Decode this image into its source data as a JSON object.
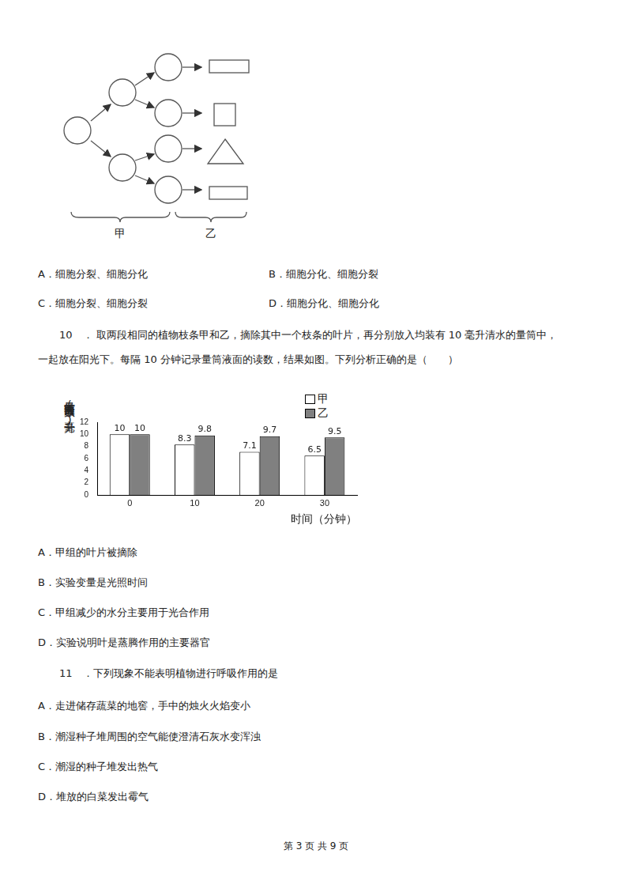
{
  "document": {
    "diagram": {
      "group_labels": [
        "甲",
        "乙"
      ]
    },
    "q9_options": [
      "A．细胞分裂、细胞分化",
      "B．细胞分化、细胞分裂",
      "C．细胞分裂、细胞分裂",
      "D．细胞分化、细胞分化"
    ],
    "q10": {
      "lines": [
        "10　． 取两段相同的植物枝条甲和乙，摘除其中一个枝条的叶片，再分别放入均装有 10 毫升清水的量筒中，",
        "一起放在阳光下。每隔 10 分钟记录量筒液面的读数，结果如图。下列分析正确的是（　　）"
      ],
      "options": [
        "A．甲组的叶片被摘除",
        "B．实验变量是光照时间",
        "C．甲组减少的水分主要用于光合作用",
        "D．实验说明叶是蒸腾作用的主要器官"
      ]
    },
    "q11": {
      "question": "11　．下列现象不能表明植物进行呼吸作用的是",
      "options": [
        "A．走进储存蔬菜的地窖，手中的烛火火焰变小",
        "B．潮湿种子堆周围的空气能使澄清石灰水变浑浊",
        "C．潮湿的种子堆发出热气",
        "D．堆放的白菜发出霉气"
      ]
    },
    "footer": "第 3 页 共 9 页"
  },
  "chart_data": {
    "type": "bar",
    "categories": [
      "0",
      "10",
      "20",
      "30"
    ],
    "series": [
      {
        "name": "甲",
        "color": "#ffffff",
        "values": [
          10,
          8.3,
          7.1,
          6.5
        ]
      },
      {
        "name": "乙",
        "color": "#808080",
        "values": [
          10,
          9.8,
          9.7,
          9.5
        ]
      }
    ],
    "x_label": "时间（分钟）",
    "y_label": "量筒液面读数(毫升)",
    "ylim": [
      0,
      12
    ],
    "yticks": [
      0,
      2,
      4,
      6,
      8,
      10,
      12
    ],
    "grid": false,
    "legend": "top-right",
    "data_labels": true
  }
}
